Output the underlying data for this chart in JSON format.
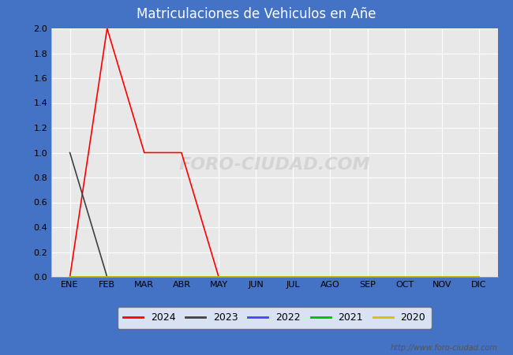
{
  "title": "Matriculaciones de Vehiculos en Añe",
  "title_bg_color": "#4472C4",
  "title_text_color": "white",
  "plot_bg_color": "#E8E8E8",
  "fig_bg_color": "#4472C4",
  "grid_color": "white",
  "months": [
    "ENE",
    "FEB",
    "MAR",
    "ABR",
    "MAY",
    "JUN",
    "JUL",
    "AGO",
    "SEP",
    "OCT",
    "NOV",
    "DIC"
  ],
  "ylim": [
    0.0,
    2.0
  ],
  "yticks": [
    0.0,
    0.2,
    0.4,
    0.6,
    0.8,
    1.0,
    1.2,
    1.4,
    1.6,
    1.8,
    2.0
  ],
  "series": {
    "2024": {
      "color": "#FF0000",
      "values": [
        0,
        2,
        1,
        1,
        0,
        null,
        null,
        null,
        null,
        null,
        null,
        null
      ]
    },
    "2023": {
      "color": "#404040",
      "values": [
        1,
        0,
        0,
        0,
        0,
        0,
        0,
        0,
        0,
        0,
        0,
        0
      ]
    },
    "2022": {
      "color": "#4444FF",
      "values": [
        0,
        0,
        0,
        0,
        0,
        0,
        0,
        0,
        0,
        0,
        0,
        0
      ]
    },
    "2021": {
      "color": "#00BB00",
      "values": [
        0,
        0,
        0,
        0,
        0,
        0,
        0,
        0,
        0,
        0,
        0,
        0
      ]
    },
    "2020": {
      "color": "#DDBB00",
      "values": [
        0,
        0,
        0,
        0,
        0,
        0,
        0,
        0,
        0,
        0,
        0,
        0
      ]
    }
  },
  "legend_order": [
    "2024",
    "2023",
    "2022",
    "2021",
    "2020"
  ],
  "watermark": "FORO-CIUDAD.COM",
  "url": "http://www.foro-ciudad.com",
  "figsize": [
    6.5,
    4.5
  ],
  "dpi": 100
}
